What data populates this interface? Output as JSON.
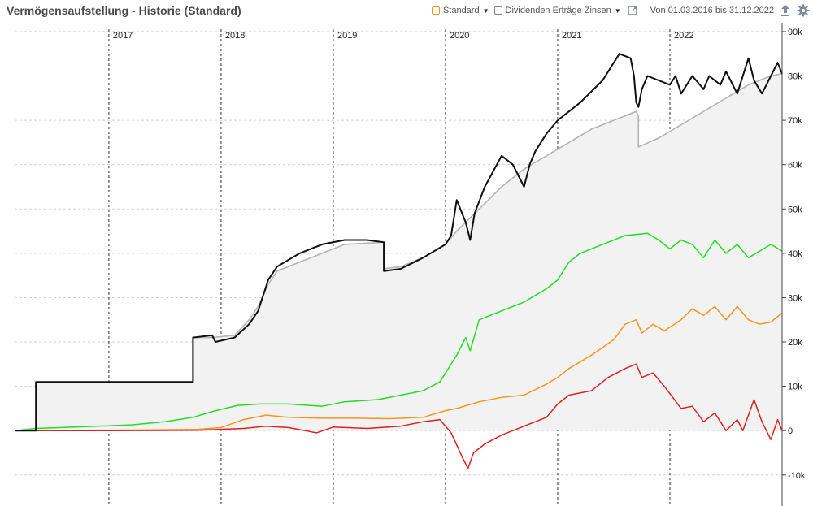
{
  "header": {
    "title": "Vermögensaufstellung - Historie (Standard)",
    "selector_standard": "Standard",
    "selector_dividends": "Dividenden Erträge Zinsen",
    "date_range": "Von 01.03.2016 bis 31.12.2022",
    "icons": [
      "orange-box-icon",
      "gray-box-icon",
      "expand-icon",
      "upload-icon",
      "gear-icon"
    ]
  },
  "colors": {
    "total": "#111111",
    "invested": "#b4b4b4",
    "invested_fill": "#f2f2f2",
    "green": "#22dd22",
    "orange": "#f7941d",
    "red": "#dd2222",
    "accent_orange": "#f7941d",
    "icon_gray": "#7b8a99"
  },
  "chart_data": {
    "type": "line",
    "title": "",
    "xlabel": "",
    "ylabel": "",
    "x_range": [
      2016.16,
      2023.0
    ],
    "ylim": [
      -17000,
      92000
    ],
    "year_labels": [
      "2017",
      "2018",
      "2019",
      "2020",
      "2021",
      "2022"
    ],
    "year_positions": [
      2017,
      2018,
      2019,
      2020,
      2021,
      2022
    ],
    "y_ticks": [
      -10000,
      0,
      10000,
      20000,
      30000,
      40000,
      50000,
      60000,
      70000,
      80000,
      90000
    ],
    "y_tick_labels": [
      "-10k",
      "0",
      "10k",
      "20k",
      "30k",
      "40k",
      "50k",
      "60k",
      "70k",
      "80k",
      "90k"
    ],
    "grid": true,
    "series": [
      {
        "key": "invested",
        "style": "area",
        "x": [
          2016.16,
          2016.35,
          2016.35,
          2017.75,
          2017.75,
          2017.92,
          2018.12,
          2018.25,
          2018.33,
          2018.42,
          2018.5,
          2018.7,
          2018.9,
          2019.1,
          2019.45,
          2019.45,
          2019.6,
          2019.8,
          2020.0,
          2020.1,
          2020.3,
          2020.5,
          2020.7,
          2020.9,
          2021.1,
          2021.3,
          2021.5,
          2021.7,
          2021.72,
          2021.72,
          2021.9,
          2022.1,
          2022.3,
          2022.5,
          2022.7,
          2022.9,
          2023.0
        ],
        "y": [
          0,
          0,
          11000,
          11000,
          21000,
          21000,
          21500,
          25000,
          28000,
          33000,
          36000,
          38000,
          40000,
          42000,
          42500,
          36500,
          37000,
          39000,
          42000,
          45000,
          50000,
          55000,
          59000,
          62000,
          65000,
          68000,
          70000,
          72000,
          71000,
          64000,
          66000,
          69000,
          72000,
          75000,
          78000,
          80000,
          80500
        ]
      },
      {
        "key": "total",
        "style": "line",
        "x": [
          2016.16,
          2016.35,
          2016.35,
          2017.0,
          2017.75,
          2017.75,
          2017.92,
          2017.95,
          2018.12,
          2018.25,
          2018.33,
          2018.42,
          2018.5,
          2018.7,
          2018.9,
          2019.1,
          2019.3,
          2019.45,
          2019.45,
          2019.6,
          2019.8,
          2020.0,
          2020.05,
          2020.1,
          2020.18,
          2020.22,
          2020.26,
          2020.35,
          2020.5,
          2020.6,
          2020.7,
          2020.75,
          2020.8,
          2020.9,
          2021.0,
          2021.2,
          2021.4,
          2021.55,
          2021.65,
          2021.68,
          2021.7,
          2021.72,
          2021.75,
          2021.8,
          2021.9,
          2022.0,
          2022.05,
          2022.1,
          2022.2,
          2022.3,
          2022.35,
          2022.45,
          2022.5,
          2022.6,
          2022.7,
          2022.75,
          2022.82,
          2022.9,
          2022.96,
          2023.0
        ],
        "y": [
          0,
          0,
          11000,
          11000,
          11000,
          21000,
          21500,
          20000,
          21000,
          24000,
          27000,
          34000,
          37000,
          40000,
          42000,
          43000,
          43000,
          42500,
          36000,
          36500,
          39000,
          42000,
          44000,
          52000,
          47000,
          43000,
          49000,
          55000,
          62000,
          60000,
          55000,
          60000,
          63000,
          67000,
          70000,
          74000,
          79000,
          85000,
          84000,
          80000,
          74000,
          73000,
          77000,
          80000,
          79000,
          78000,
          80000,
          76000,
          80000,
          77000,
          80000,
          78000,
          81000,
          76000,
          84000,
          79000,
          76000,
          80000,
          83000,
          80500
        ]
      },
      {
        "key": "green",
        "style": "line",
        "x": [
          2016.16,
          2016.35,
          2016.7,
          2017.2,
          2017.5,
          2017.75,
          2017.95,
          2018.15,
          2018.35,
          2018.6,
          2018.9,
          2019.1,
          2019.4,
          2019.6,
          2019.8,
          2019.95,
          2020.1,
          2020.18,
          2020.22,
          2020.3,
          2020.5,
          2020.7,
          2020.9,
          2021.0,
          2021.1,
          2021.2,
          2021.4,
          2021.6,
          2021.8,
          2021.9,
          2022.0,
          2022.1,
          2022.2,
          2022.3,
          2022.4,
          2022.5,
          2022.6,
          2022.7,
          2022.8,
          2022.9,
          2023.0
        ],
        "y": [
          0,
          500,
          800,
          1300,
          2000,
          3000,
          4500,
          5700,
          6000,
          6000,
          5500,
          6500,
          7000,
          8000,
          9000,
          11000,
          17000,
          21000,
          18000,
          25000,
          27000,
          29000,
          32000,
          34000,
          38000,
          40000,
          42000,
          44000,
          44500,
          43000,
          41000,
          43000,
          42000,
          39000,
          43000,
          40000,
          42000,
          39000,
          40500,
          42000,
          40500
        ]
      },
      {
        "key": "orange",
        "style": "line",
        "x": [
          2016.16,
          2016.35,
          2017.0,
          2017.8,
          2018.0,
          2018.2,
          2018.4,
          2018.6,
          2018.9,
          2019.2,
          2019.5,
          2019.8,
          2020.0,
          2020.1,
          2020.3,
          2020.5,
          2020.7,
          2020.9,
          2021.0,
          2021.1,
          2021.3,
          2021.5,
          2021.6,
          2021.7,
          2021.75,
          2021.85,
          2021.95,
          2022.1,
          2022.2,
          2022.3,
          2022.4,
          2022.5,
          2022.6,
          2022.7,
          2022.8,
          2022.9,
          2023.0
        ],
        "y": [
          0,
          0,
          100,
          300,
          700,
          2500,
          3500,
          3000,
          2800,
          2800,
          2700,
          3000,
          4500,
          5000,
          6500,
          7500,
          8000,
          10500,
          12000,
          14000,
          17000,
          20500,
          24000,
          25000,
          22000,
          24000,
          22500,
          25000,
          27500,
          26000,
          28000,
          25000,
          28000,
          25000,
          24000,
          24500,
          26500
        ]
      },
      {
        "key": "red",
        "style": "line",
        "x": [
          2016.16,
          2016.35,
          2017.0,
          2017.8,
          2018.0,
          2018.2,
          2018.4,
          2018.6,
          2018.85,
          2019.0,
          2019.3,
          2019.6,
          2019.8,
          2019.95,
          2020.05,
          2020.15,
          2020.2,
          2020.25,
          2020.35,
          2020.5,
          2020.7,
          2020.9,
          2021.0,
          2021.1,
          2021.3,
          2021.45,
          2021.6,
          2021.7,
          2021.75,
          2021.85,
          2021.95,
          2022.1,
          2022.2,
          2022.3,
          2022.4,
          2022.5,
          2022.6,
          2022.65,
          2022.75,
          2022.82,
          2022.9,
          2022.96,
          2023.0
        ],
        "y": [
          0,
          0,
          0,
          100,
          300,
          500,
          1000,
          700,
          -500,
          800,
          500,
          1000,
          2000,
          2500,
          -500,
          -6000,
          -8500,
          -5000,
          -3000,
          -1000,
          1000,
          3000,
          6000,
          8000,
          9000,
          12000,
          14000,
          15000,
          12000,
          13000,
          10000,
          5000,
          5500,
          2000,
          4000,
          0,
          2500,
          0,
          7000,
          2000,
          -2000,
          2500,
          0
        ]
      }
    ]
  }
}
